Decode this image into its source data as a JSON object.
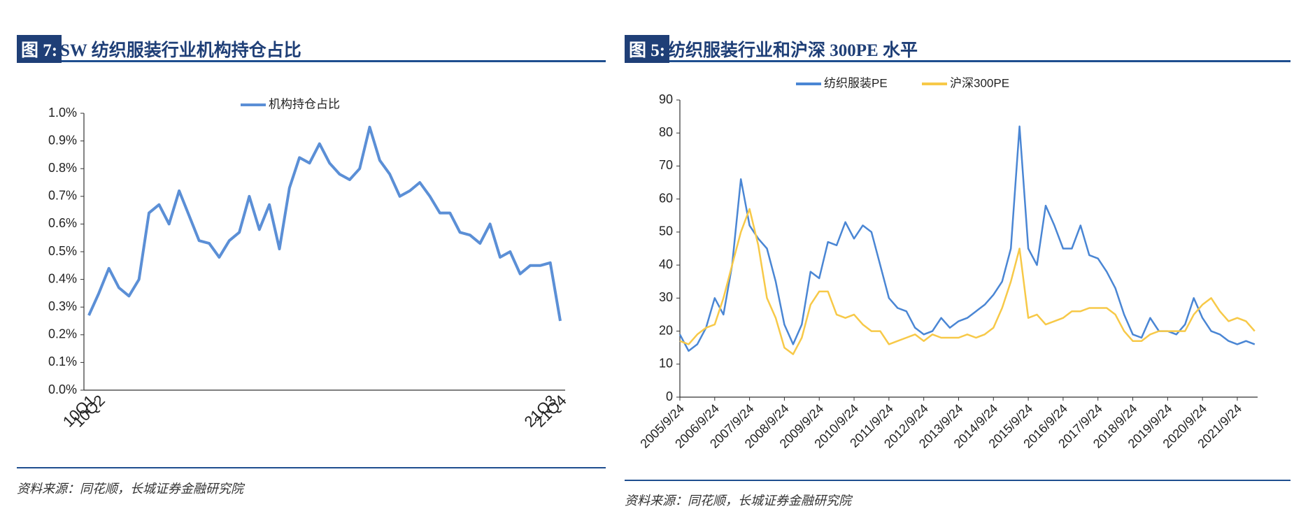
{
  "chart_data": [
    {
      "type": "line",
      "figure_label": "图 7:",
      "title": "SW 纺织服装行业机构持仓占比",
      "source": "资料来源：同花顺，长城证券金融研究院",
      "categories": [
        "10Q1",
        "10Q2",
        null,
        null,
        null,
        null,
        null,
        null,
        null,
        null,
        null,
        null,
        null,
        null,
        null,
        null,
        null,
        null,
        null,
        null,
        null,
        null,
        null,
        null,
        null,
        null,
        null,
        null,
        null,
        null,
        null,
        null,
        null,
        null,
        null,
        null,
        null,
        null,
        null,
        null,
        null,
        null,
        null,
        null,
        null,
        null,
        "21Q3",
        "21Q4"
      ],
      "series": [
        {
          "name": "机构持仓占比",
          "color": "#5b8fd6",
          "values": [
            0.27,
            0.35,
            0.44,
            0.37,
            0.34,
            0.4,
            0.64,
            0.67,
            0.6,
            0.72,
            0.63,
            0.54,
            0.53,
            0.48,
            0.54,
            0.57,
            0.7,
            0.58,
            0.67,
            0.51,
            0.73,
            0.84,
            0.82,
            0.89,
            0.82,
            0.78,
            0.76,
            0.8,
            0.95,
            0.83,
            0.78,
            0.7,
            0.72,
            0.75,
            0.7,
            0.64,
            0.64,
            0.57,
            0.56,
            0.53,
            0.6,
            0.48,
            0.5,
            0.42,
            0.45,
            0.45,
            0.46,
            0.25
          ]
        }
      ],
      "ylim": [
        0,
        1.0
      ],
      "yticks": [
        {
          "value": 0,
          "label": "0.0%"
        },
        {
          "value": 0.1,
          "label": "0.1%"
        },
        {
          "value": 0.2,
          "label": "0.2%"
        },
        {
          "value": 0.3,
          "label": "0.3%"
        },
        {
          "value": 0.4,
          "label": "0.4%"
        },
        {
          "value": 0.5,
          "label": "0.5%"
        },
        {
          "value": 0.6,
          "label": "0.6%"
        },
        {
          "value": 0.7,
          "label": "0.7%"
        },
        {
          "value": 0.8,
          "label": "0.8%"
        },
        {
          "value": 0.9,
          "label": "0.9%"
        },
        {
          "value": 1.0,
          "label": "1.0%"
        }
      ],
      "legend": "top"
    },
    {
      "type": "line",
      "figure_label": "图 5:",
      "title": "纺织服装行业和沪深 300PE 水平",
      "source": "资料来源：同花顺，长城证券金融研究院",
      "x": [
        "2005/9/24",
        "2005/12/24",
        "2006/3/24",
        "2006/6/24",
        "2006/9/24",
        "2006/12/24",
        "2007/3/24",
        "2007/6/24",
        "2007/9/24",
        "2007/12/24",
        "2008/3/24",
        "2008/6/24",
        "2008/9/24",
        "2008/12/24",
        "2009/3/24",
        "2009/6/24",
        "2009/9/24",
        "2009/12/24",
        "2010/3/24",
        "2010/6/24",
        "2010/9/24",
        "2010/12/24",
        "2011/3/24",
        "2011/6/24",
        "2011/9/24",
        "2011/12/24",
        "2012/3/24",
        "2012/6/24",
        "2012/9/24",
        "2012/12/24",
        "2013/3/24",
        "2013/6/24",
        "2013/9/24",
        "2013/12/24",
        "2014/3/24",
        "2014/6/24",
        "2014/9/24",
        "2014/12/24",
        "2015/3/24",
        "2015/6/24",
        "2015/9/24",
        "2015/12/24",
        "2016/3/24",
        "2016/6/24",
        "2016/9/24",
        "2016/12/24",
        "2017/3/24",
        "2017/6/24",
        "2017/9/24",
        "2017/12/24",
        "2018/3/24",
        "2018/6/24",
        "2018/9/24",
        "2018/12/24",
        "2019/3/24",
        "2019/6/24",
        "2019/9/24",
        "2019/12/24",
        "2020/3/24",
        "2020/6/24",
        "2020/9/24",
        "2020/12/24",
        "2021/3/24",
        "2021/6/24",
        "2021/9/24",
        "2021/12/24",
        "2022/3/24"
      ],
      "series": [
        {
          "name": "纺织服装PE",
          "color": "#4a86d4",
          "values": [
            19,
            14,
            16,
            21,
            30,
            25,
            40,
            66,
            52,
            48,
            45,
            35,
            22,
            16,
            22,
            38,
            36,
            47,
            46,
            53,
            48,
            52,
            50,
            40,
            30,
            27,
            26,
            21,
            19,
            20,
            24,
            21,
            23,
            24,
            26,
            28,
            31,
            35,
            45,
            82,
            45,
            40,
            58,
            52,
            45,
            45,
            52,
            43,
            42,
            38,
            33,
            25,
            19,
            18,
            24,
            20,
            20,
            19,
            22,
            30,
            24,
            20,
            19,
            17,
            16,
            17,
            16
          ]
        },
        {
          "name": "沪深300PE",
          "color": "#f7c948",
          "values": [
            17,
            16,
            19,
            21,
            22,
            30,
            40,
            50,
            57,
            46,
            30,
            24,
            15,
            13,
            18,
            28,
            32,
            32,
            25,
            24,
            25,
            22,
            20,
            20,
            16,
            17,
            18,
            19,
            17,
            19,
            18,
            18,
            18,
            19,
            18,
            19,
            21,
            27,
            35,
            45,
            24,
            25,
            22,
            23,
            24,
            26,
            26,
            27,
            27,
            27,
            25,
            20,
            17,
            17,
            19,
            20,
            20,
            20,
            20,
            25,
            28,
            30,
            26,
            23,
            24,
            23,
            20
          ]
        }
      ],
      "xlim": [
        "2005/9/24",
        "2022/4/24"
      ],
      "xticks": [
        "2005/9/24",
        "2006/9/24",
        "2007/9/24",
        "2008/9/24",
        "2009/9/24",
        "2010/9/24",
        "2011/9/24",
        "2012/9/24",
        "2013/9/24",
        "2014/9/24",
        "2015/9/24",
        "2016/9/24",
        "2017/9/24",
        "2018/9/24",
        "2019/9/24",
        "2020/9/24",
        "2021/9/24"
      ],
      "ylim": [
        0,
        90
      ],
      "yticks": [
        0,
        10,
        20,
        30,
        40,
        50,
        60,
        70,
        80,
        90
      ],
      "legend": "top"
    }
  ]
}
